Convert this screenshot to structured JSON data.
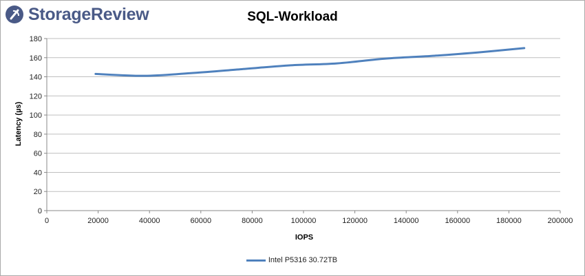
{
  "brand": {
    "name": "StorageReview",
    "color": "#4a5a87"
  },
  "chart_data": {
    "type": "line",
    "title": "SQL-Workload",
    "xlabel": "IOPS",
    "ylabel": "Latency (µs)",
    "xlim": [
      0,
      200000
    ],
    "ylim": [
      0,
      180
    ],
    "xticks": [
      0,
      20000,
      40000,
      60000,
      80000,
      100000,
      120000,
      140000,
      160000,
      180000,
      200000
    ],
    "yticks": [
      0,
      20,
      40,
      60,
      80,
      100,
      120,
      140,
      160,
      180
    ],
    "grid": true,
    "legend_position": "bottom",
    "series": [
      {
        "name": "Intel P5316 30.72TB",
        "color": "#4f81bd",
        "x": [
          19000,
          38000,
          57000,
          76000,
          95000,
          113000,
          132000,
          151000,
          170000,
          186000
        ],
        "y": [
          143,
          141,
          144,
          148,
          152,
          154,
          159,
          162,
          166,
          170
        ]
      }
    ]
  }
}
